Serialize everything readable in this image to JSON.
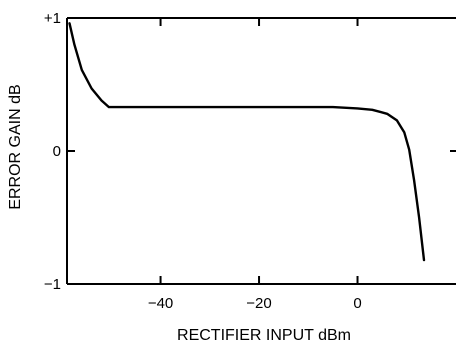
{
  "chart_data": {
    "type": "line",
    "xlabel": "RECTIFIER INPUT dBm",
    "ylabel": "ERROR GAIN dB",
    "xlim": [
      -59,
      20
    ],
    "ylim": [
      -1,
      1
    ],
    "x_ticks": [
      {
        "value": -40,
        "label": "−40"
      },
      {
        "value": -20,
        "label": "−20"
      },
      {
        "value": 0,
        "label": "0"
      }
    ],
    "y_ticks": [
      {
        "value": 1,
        "label": "+1"
      },
      {
        "value": 0,
        "label": "0"
      },
      {
        "value": -1,
        "label": "−1"
      }
    ],
    "grid": false,
    "series": [
      {
        "color": "#000000",
        "x": [
          -58.5,
          -57.5,
          -56,
          -54,
          -52,
          -50.5,
          -40,
          -30,
          -20,
          -10,
          -5,
          0,
          3,
          6,
          8,
          9.5,
          10.5,
          11.5,
          12.5,
          13.5
        ],
        "y": [
          0.96,
          0.8,
          0.61,
          0.47,
          0.38,
          0.33,
          0.33,
          0.33,
          0.33,
          0.33,
          0.33,
          0.32,
          0.31,
          0.28,
          0.23,
          0.14,
          0.01,
          -0.22,
          -0.5,
          -0.82
        ]
      }
    ]
  }
}
